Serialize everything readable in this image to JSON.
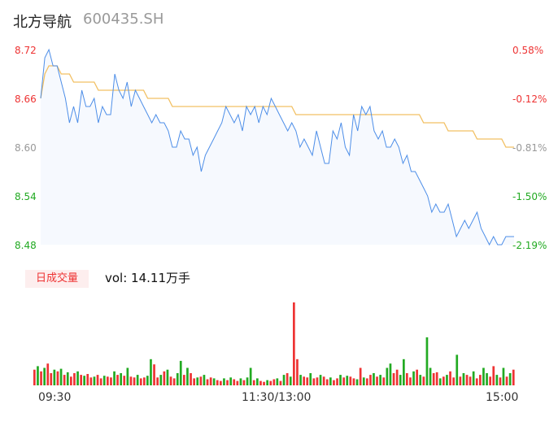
{
  "header": {
    "name": "北方导航",
    "code": "600435.SH"
  },
  "chart_data": {
    "type": "line",
    "y_left_ticks": [
      "8.72",
      "8.66",
      "8.60",
      "8.54",
      "8.48"
    ],
    "y_right_ticks": [
      "0.58%",
      "-0.12%",
      "-0.81%",
      "-1.50%",
      "-2.19%"
    ],
    "ylim": [
      8.48,
      8.72
    ],
    "x_ticks": [
      "09:30",
      "11:30/13:00",
      "15:00"
    ],
    "price": [
      8.66,
      8.71,
      8.72,
      8.7,
      8.7,
      8.68,
      8.66,
      8.63,
      8.65,
      8.63,
      8.67,
      8.65,
      8.65,
      8.66,
      8.63,
      8.65,
      8.64,
      8.64,
      8.69,
      8.67,
      8.66,
      8.68,
      8.65,
      8.67,
      8.66,
      8.65,
      8.64,
      8.63,
      8.64,
      8.63,
      8.63,
      8.62,
      8.6,
      8.6,
      8.62,
      8.61,
      8.61,
      8.59,
      8.6,
      8.57,
      8.59,
      8.6,
      8.61,
      8.62,
      8.63,
      8.65,
      8.64,
      8.63,
      8.64,
      8.62,
      8.65,
      8.64,
      8.65,
      8.63,
      8.65,
      8.64,
      8.66,
      8.65,
      8.64,
      8.63,
      8.62,
      8.63,
      8.62,
      8.6,
      8.61,
      8.6,
      8.59,
      8.62,
      8.6,
      8.58,
      8.58,
      8.62,
      8.61,
      8.63,
      8.6,
      8.59,
      8.64,
      8.62,
      8.65,
      8.64,
      8.65,
      8.62,
      8.61,
      8.62,
      8.6,
      8.6,
      8.61,
      8.6,
      8.58,
      8.59,
      8.57,
      8.57,
      8.56,
      8.55,
      8.54,
      8.52,
      8.53,
      8.52,
      8.52,
      8.53,
      8.51,
      8.49,
      8.5,
      8.51,
      8.5,
      8.51,
      8.52,
      8.5,
      8.49,
      8.48,
      8.49,
      8.48,
      8.48,
      8.49,
      8.49,
      8.49
    ],
    "avg": [
      8.66,
      8.69,
      8.7,
      8.7,
      8.7,
      8.69,
      8.69,
      8.69,
      8.68,
      8.68,
      8.68,
      8.68,
      8.68,
      8.68,
      8.67,
      8.67,
      8.67,
      8.67,
      8.67,
      8.67,
      8.67,
      8.67,
      8.67,
      8.67,
      8.67,
      8.67,
      8.66,
      8.66,
      8.66,
      8.66,
      8.66,
      8.66,
      8.65,
      8.65,
      8.65,
      8.65,
      8.65,
      8.65,
      8.65,
      8.65,
      8.65,
      8.65,
      8.65,
      8.65,
      8.65,
      8.65,
      8.65,
      8.65,
      8.65,
      8.65,
      8.65,
      8.65,
      8.65,
      8.65,
      8.65,
      8.65,
      8.65,
      8.65,
      8.65,
      8.65,
      8.65,
      8.65,
      8.64,
      8.64,
      8.64,
      8.64,
      8.64,
      8.64,
      8.64,
      8.64,
      8.64,
      8.64,
      8.64,
      8.64,
      8.64,
      8.64,
      8.64,
      8.64,
      8.64,
      8.64,
      8.64,
      8.64,
      8.64,
      8.64,
      8.64,
      8.64,
      8.64,
      8.64,
      8.64,
      8.64,
      8.64,
      8.64,
      8.64,
      8.63,
      8.63,
      8.63,
      8.63,
      8.63,
      8.63,
      8.62,
      8.62,
      8.62,
      8.62,
      8.62,
      8.62,
      8.62,
      8.61,
      8.61,
      8.61,
      8.61,
      8.61,
      8.61,
      8.61,
      8.6,
      8.6,
      8.6
    ],
    "volume_label": "日成交量",
    "volume_text": "vol: 14.11万手",
    "volume": [
      18,
      22,
      16,
      20,
      25,
      14,
      18,
      16,
      19,
      12,
      15,
      10,
      14,
      16,
      12,
      11,
      13,
      9,
      10,
      12,
      8,
      11,
      10,
      9,
      16,
      12,
      14,
      11,
      20,
      10,
      9,
      12,
      8,
      9,
      11,
      30,
      24,
      9,
      12,
      16,
      18,
      10,
      8,
      14,
      28,
      12,
      20,
      14,
      8,
      9,
      10,
      12,
      7,
      9,
      8,
      6,
      5,
      8,
      6,
      9,
      7,
      5,
      8,
      6,
      9,
      20,
      6,
      8,
      5,
      4,
      6,
      5,
      7,
      8,
      5,
      12,
      14,
      10,
      95,
      30,
      12,
      10,
      9,
      14,
      8,
      9,
      12,
      10,
      7,
      9,
      6,
      8,
      12,
      9,
      11,
      10,
      8,
      7,
      20,
      9,
      8,
      12,
      14,
      10,
      12,
      9,
      20,
      25,
      14,
      18,
      12,
      30,
      14,
      9,
      16,
      18,
      12,
      10,
      55,
      20,
      14,
      15,
      8,
      10,
      12,
      16,
      9,
      35,
      10,
      14,
      12,
      10,
      16,
      8,
      12,
      20,
      14,
      10,
      22,
      12,
      9,
      20,
      10,
      14,
      18
    ],
    "volume_colors": [
      "#e33",
      "#2a2",
      "#e33",
      "#2a2",
      "#e33",
      "#e33",
      "#2a2",
      "#e33",
      "#2a2",
      "#e33",
      "#2a2",
      "#e33",
      "#e33",
      "#2a2",
      "#e33",
      "#2a2",
      "#e33",
      "#e33",
      "#2a2",
      "#e33",
      "#e33",
      "#2a2",
      "#e33",
      "#e33",
      "#2a2",
      "#e33",
      "#2a2",
      "#e33",
      "#2a2",
      "#e33",
      "#e33",
      "#2a2",
      "#e33",
      "#e33",
      "#2a2",
      "#2a2",
      "#e33",
      "#e33",
      "#2a2",
      "#e33",
      "#2a2",
      "#e33",
      "#e33",
      "#2a2",
      "#2a2",
      "#e33",
      "#2a2",
      "#e33",
      "#e33",
      "#2a2",
      "#e33",
      "#2a2",
      "#e33",
      "#e33",
      "#2a2",
      "#e33",
      "#e33",
      "#2a2",
      "#e33",
      "#2a2",
      "#e33",
      "#e33",
      "#2a2",
      "#e33",
      "#2a2",
      "#2a2",
      "#e33",
      "#2a2",
      "#e33",
      "#e33",
      "#2a2",
      "#e33",
      "#e33",
      "#2a2",
      "#e33",
      "#2a2",
      "#e33",
      "#2a2",
      "#e33",
      "#e33",
      "#2a2",
      "#e33",
      "#e33",
      "#2a2",
      "#e33",
      "#e33",
      "#2a2",
      "#e33",
      "#e33",
      "#2a2",
      "#e33",
      "#e33",
      "#2a2",
      "#e33",
      "#2a2",
      "#e33",
      "#e33",
      "#2a2",
      "#e33",
      "#2a2",
      "#e33",
      "#e33",
      "#2a2",
      "#e33",
      "#2a2",
      "#e33",
      "#2a2",
      "#2a2",
      "#e33",
      "#e33",
      "#2a2",
      "#2a2",
      "#e33",
      "#e33",
      "#2a2",
      "#e33",
      "#2a2",
      "#e33",
      "#2a2",
      "#2a2",
      "#e33",
      "#e33",
      "#2a2",
      "#e33",
      "#2a2",
      "#e33",
      "#e33",
      "#2a2",
      "#e33",
      "#2a2",
      "#e33",
      "#e33",
      "#2a2",
      "#e33",
      "#e33",
      "#2a2",
      "#2a2",
      "#e33",
      "#e33",
      "#2a2",
      "#e33",
      "#2a2",
      "#e33",
      "#2a2",
      "#e33",
      "#2a2"
    ],
    "colors": {
      "price": "#4d8ee8",
      "avg": "#f2c063",
      "up": "#e33",
      "down": "#2a2",
      "neutral": "#999"
    }
  }
}
